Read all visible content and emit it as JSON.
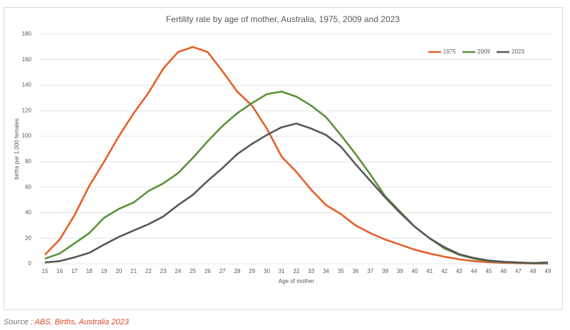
{
  "chart_data": {
    "type": "line",
    "title": "Fertility rate by age of mother, Australia, 1975, 2009 and 2023",
    "x_label": "Age of mother",
    "y_label": "births per 1,000 females",
    "x": [
      15,
      16,
      17,
      18,
      19,
      20,
      21,
      22,
      23,
      24,
      25,
      26,
      27,
      28,
      29,
      30,
      31,
      32,
      33,
      34,
      35,
      36,
      37,
      38,
      39,
      40,
      41,
      42,
      43,
      44,
      45,
      46,
      47,
      48,
      49
    ],
    "xlim": [
      15,
      49
    ],
    "xticks": [
      15,
      16,
      17,
      18,
      19,
      20,
      21,
      22,
      23,
      24,
      25,
      26,
      27,
      28,
      29,
      30,
      31,
      32,
      33,
      34,
      35,
      36,
      37,
      38,
      39,
      40,
      41,
      42,
      43,
      44,
      45,
      46,
      47,
      48,
      49
    ],
    "ylim": [
      0,
      180
    ],
    "yticks": [
      0,
      20,
      40,
      60,
      80,
      100,
      120,
      140,
      160,
      180
    ],
    "grid": true,
    "legend": "top-right",
    "series": [
      {
        "name": "1975",
        "color": "#e5602a",
        "values": [
          7,
          19,
          38,
          61,
          80,
          100,
          118,
          134,
          153,
          166,
          170,
          166,
          151,
          135,
          124,
          106,
          84,
          72,
          58,
          46,
          39,
          30,
          24,
          19,
          15,
          11,
          8,
          5.5,
          3.5,
          2,
          1.2,
          0.7,
          0.4,
          0.2,
          0.1
        ]
      },
      {
        "name": "2009",
        "color": "#5b923a",
        "values": [
          4,
          8,
          16,
          24,
          36,
          43,
          48,
          57,
          63,
          71,
          83,
          96,
          108,
          118,
          126,
          133,
          135,
          131,
          124,
          115,
          101,
          86,
          70,
          53,
          41,
          29,
          20,
          12,
          7,
          4,
          2,
          1.3,
          0.8,
          0.4,
          0.5
        ]
      },
      {
        "name": "2023",
        "color": "#595959",
        "values": [
          1,
          2,
          5,
          8.5,
          15,
          21,
          26,
          31,
          37,
          46,
          54,
          65,
          75,
          86,
          94,
          101,
          107,
          110,
          106,
          101,
          92,
          78,
          65,
          52,
          40,
          29,
          20,
          13,
          7.5,
          4.5,
          2.5,
          1.5,
          1,
          0.5,
          1
        ]
      }
    ]
  },
  "footer": {
    "source_label": "Source :",
    "source": "ABS, Births, Australia 2023"
  }
}
